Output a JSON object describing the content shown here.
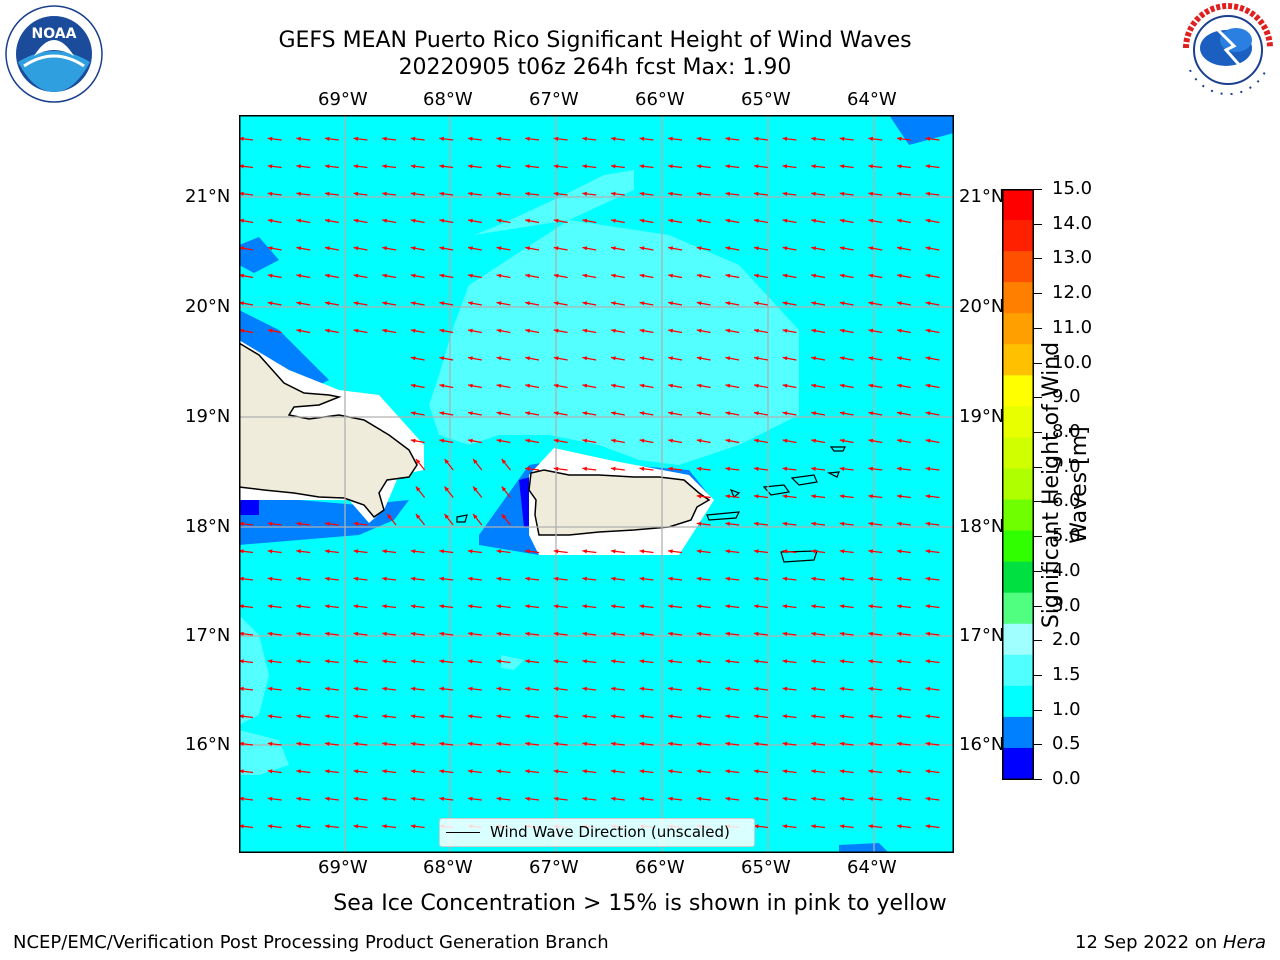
{
  "title": {
    "line1": "GEFS MEAN Puerto Rico Significant Height of Wind Waves",
    "line2": "20220905 t06z 264h fcst   Max: 1.90"
  },
  "logos": {
    "left": {
      "name": "noaa-logo",
      "text": "NOAA",
      "ring_text": "NATIONAL OCEANIC AND ATMOSPHERIC ADMINISTRATION · U.S. DEPARTMENT OF COMMERCE"
    },
    "right": {
      "name": "nws-logo",
      "ring_text": "NATIONAL WEATHER SERVICE"
    }
  },
  "map": {
    "lon_labels": [
      "69°W",
      "68°W",
      "67°W",
      "66°W",
      "65°W",
      "64°W"
    ],
    "lat_labels": [
      "21°N",
      "20°N",
      "19°N",
      "18°N",
      "17°N",
      "16°N"
    ],
    "legend_label": "Wind Wave Direction (unscaled)",
    "ocean_color": "#00ffff",
    "arrow_color": "#ff0000",
    "land_color": "#efecdc"
  },
  "colorbar": {
    "label": "Significant Height of Wind Waves [m]",
    "ticks": [
      "15.0",
      "14.0",
      "13.0",
      "12.0",
      "11.0",
      "10.0",
      "9.0",
      "8.0",
      "7.0",
      "6.0",
      "5.0",
      "4.0",
      "3.0",
      "2.0",
      "1.5",
      "1.0",
      "0.5",
      "0.0"
    ],
    "colors_top_to_bottom": [
      "#ff0000",
      "#ff2000",
      "#ff5000",
      "#ff8000",
      "#ffa000",
      "#ffc000",
      "#ffff00",
      "#e8ff00",
      "#d0ff00",
      "#b0ff00",
      "#70ff00",
      "#30ff00",
      "#00e040",
      "#50ff80",
      "#a0ffff",
      "#50ffff",
      "#00ffff",
      "#0080ff",
      "#0000ff"
    ]
  },
  "footer": {
    "sea_ice_note": "Sea Ice Concentration > 15% is shown in pink to yellow",
    "branch": "NCEP/EMC/Verification Post Processing Product Generation Branch",
    "date": "12 Sep 2022 on ",
    "machine": "Hera"
  }
}
